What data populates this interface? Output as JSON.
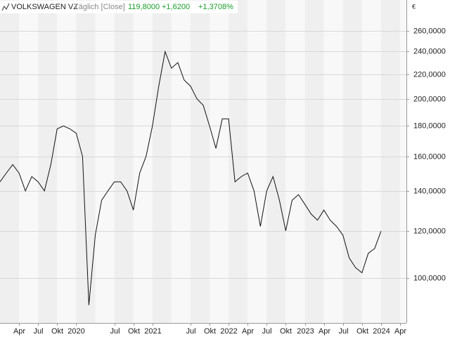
{
  "chart_data": {
    "type": "line",
    "title": "VOLKSWAGEN VZ",
    "subtitle": "Täglich [Close]",
    "header": {
      "last": "119,8000",
      "change": "+1,6200",
      "change_pct": "+1,3708%",
      "color": "#1a9c2a"
    },
    "unit": "€",
    "x": [
      "2019-01",
      "2019-02",
      "2019-03",
      "2019-04",
      "2019-05",
      "2019-06",
      "2019-07",
      "2019-08",
      "2019-09",
      "2019-10",
      "2019-11",
      "2019-12",
      "2020-01",
      "2020-02",
      "2020-03",
      "2020-04",
      "2020-05",
      "2020-06",
      "2020-07",
      "2020-08",
      "2020-09",
      "2020-10",
      "2020-11",
      "2020-12",
      "2021-01",
      "2021-02",
      "2021-03",
      "2021-04",
      "2021-05",
      "2021-06",
      "2021-07",
      "2021-08",
      "2021-09",
      "2021-10",
      "2021-11",
      "2021-12",
      "2022-01",
      "2022-02",
      "2022-03",
      "2022-04",
      "2022-05",
      "2022-06",
      "2022-07",
      "2022-08",
      "2022-09",
      "2022-10",
      "2022-11",
      "2022-12",
      "2023-01",
      "2023-02",
      "2023-03",
      "2023-04",
      "2023-05",
      "2023-06",
      "2023-07",
      "2023-08",
      "2023-09",
      "2023-10",
      "2023-11",
      "2023-12",
      "2024-01"
    ],
    "values": [
      145,
      150,
      155,
      150,
      140,
      148,
      145,
      140,
      155,
      178,
      180,
      178,
      175,
      160,
      90,
      118,
      135,
      140,
      145,
      145,
      140,
      130,
      150,
      160,
      180,
      210,
      240,
      225,
      230,
      215,
      210,
      200,
      195,
      180,
      165,
      185,
      185,
      145,
      148,
      150,
      140,
      122,
      140,
      148,
      135,
      120,
      135,
      138,
      133,
      128,
      125,
      130,
      125,
      122,
      118,
      108,
      104,
      102,
      110,
      112,
      119.8
    ],
    "color": "#111111",
    "xlim": [
      "2019-01",
      "2024-05"
    ],
    "xticks": [
      {
        "value": "2019-04",
        "label": "Apr"
      },
      {
        "value": "2019-07",
        "label": "Jul"
      },
      {
        "value": "2019-10",
        "label": "Okt"
      },
      {
        "value": "2020-01",
        "label": "2020"
      },
      {
        "value": "2020-07",
        "label": "Jul"
      },
      {
        "value": "2020-10",
        "label": "Okt"
      },
      {
        "value": "2021-01",
        "label": "2021"
      },
      {
        "value": "2021-07",
        "label": "Jul"
      },
      {
        "value": "2021-10",
        "label": "Okt"
      },
      {
        "value": "2022-01",
        "label": "2022"
      },
      {
        "value": "2022-04",
        "label": "Apr"
      },
      {
        "value": "2022-07",
        "label": "Jul"
      },
      {
        "value": "2022-10",
        "label": "Okt"
      },
      {
        "value": "2023-01",
        "label": "2023"
      },
      {
        "value": "2023-04",
        "label": "Apr"
      },
      {
        "value": "2023-07",
        "label": "Jul"
      },
      {
        "value": "2023-10",
        "label": "Okt"
      },
      {
        "value": "2024-01",
        "label": "2024"
      },
      {
        "value": "2024-04",
        "label": "Apr"
      }
    ],
    "ylim": [
      84,
      293
    ],
    "yticks": [
      {
        "value": 100,
        "label": "100,0000"
      },
      {
        "value": 120,
        "label": "120,0000"
      },
      {
        "value": 140,
        "label": "140,0000"
      },
      {
        "value": 160,
        "label": "160,0000"
      },
      {
        "value": 180,
        "label": "180,0000"
      },
      {
        "value": 200,
        "label": "200,0000"
      },
      {
        "value": 220,
        "label": "220,0000"
      },
      {
        "value": 240,
        "label": "240,0000"
      },
      {
        "value": 260,
        "label": "260,0000"
      }
    ],
    "log_scale": true,
    "grid": true
  }
}
